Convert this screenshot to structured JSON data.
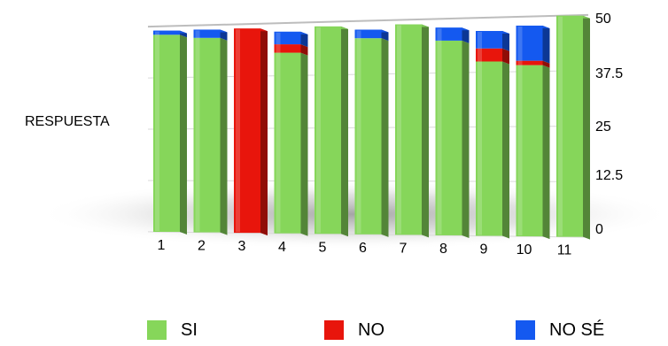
{
  "chart_data": {
    "type": "bar",
    "stacked": true,
    "title": "",
    "xlabel": "",
    "ylabel": "RESPUESTA",
    "ylim": [
      0,
      50
    ],
    "yticks": [
      "0",
      "12.5",
      "25",
      "37.5",
      "50"
    ],
    "categories": [
      "1",
      "2",
      "3",
      "4",
      "5",
      "6",
      "7",
      "8",
      "9",
      "10",
      "11"
    ],
    "series": [
      {
        "name": "SI",
        "color": "#86d65a",
        "values": [
          48,
          47,
          0,
          43,
          49,
          46,
          49,
          45,
          40,
          39,
          50
        ]
      },
      {
        "name": "NO",
        "color": "#e8150c",
        "values": [
          0,
          0,
          49,
          2,
          0,
          0,
          0,
          0,
          3,
          1,
          0
        ]
      },
      {
        "name": "NO SÉ",
        "color": "#1459f0",
        "values": [
          1,
          2,
          0,
          3,
          0,
          2,
          0,
          3,
          4,
          8,
          0
        ]
      }
    ],
    "grid": true,
    "legend_position": "bottom"
  }
}
